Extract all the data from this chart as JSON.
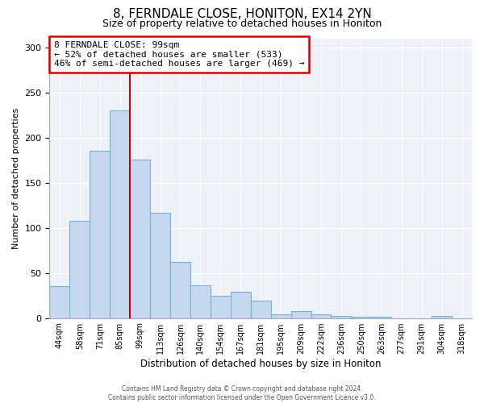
{
  "title": "8, FERNDALE CLOSE, HONITON, EX14 2YN",
  "subtitle": "Size of property relative to detached houses in Honiton",
  "xlabel": "Distribution of detached houses by size in Honiton",
  "ylabel": "Number of detached properties",
  "bar_labels": [
    "44sqm",
    "58sqm",
    "71sqm",
    "85sqm",
    "99sqm",
    "113sqm",
    "126sqm",
    "140sqm",
    "154sqm",
    "167sqm",
    "181sqm",
    "195sqm",
    "209sqm",
    "222sqm",
    "236sqm",
    "250sqm",
    "263sqm",
    "277sqm",
    "291sqm",
    "304sqm",
    "318sqm"
  ],
  "bar_heights": [
    35,
    108,
    185,
    230,
    176,
    117,
    62,
    36,
    25,
    29,
    19,
    4,
    8,
    4,
    2,
    1,
    1,
    0,
    0,
    2,
    0
  ],
  "bar_color": "#c5d8ef",
  "bar_edge_color": "#7bafd4",
  "vline_color": "#cc0000",
  "annotation_title": "8 FERNDALE CLOSE: 99sqm",
  "annotation_line1": "← 52% of detached houses are smaller (533)",
  "annotation_line2": "46% of semi-detached houses are larger (469) →",
  "annotation_box_edge": "#cc0000",
  "ylim": [
    0,
    310
  ],
  "yticks": [
    0,
    50,
    100,
    150,
    200,
    250,
    300
  ],
  "footer1": "Contains HM Land Registry data © Crown copyright and database right 2024.",
  "footer2": "Contains public sector information licensed under the Open Government Licence v3.0.",
  "title_fontsize": 11,
  "subtitle_fontsize": 9,
  "bg_color": "#eef2f8"
}
